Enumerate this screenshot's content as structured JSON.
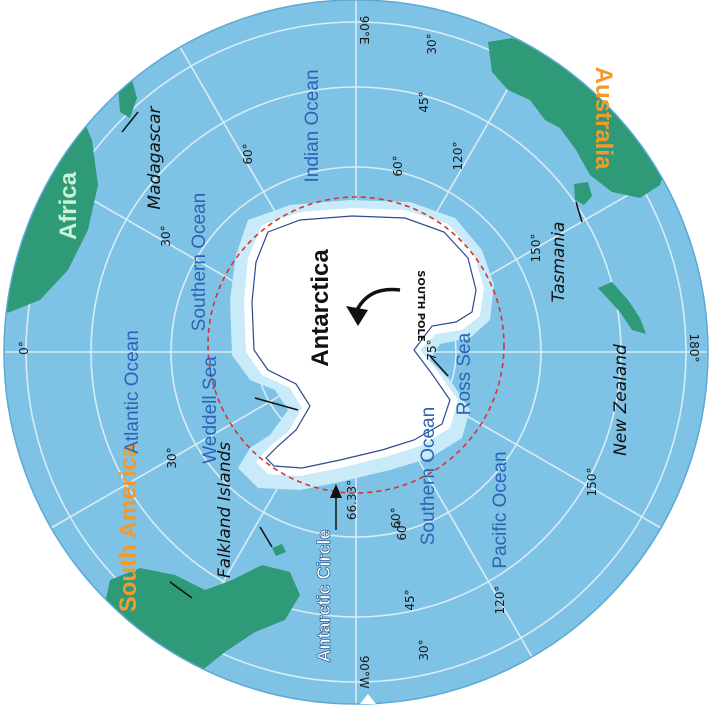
{
  "colors": {
    "ocean": "#7ec3e6",
    "land": "#2f9a78",
    "ice": "#ffffff",
    "shelf": "#c9eaf8",
    "circle_line": "#d9342b",
    "continent_label_orange": "#f39a2a",
    "continent_label_light": "#c9f2d6",
    "ocean_label": "#2d63b4"
  },
  "continents": {
    "africa": "Africa",
    "australia": "Australia",
    "south_america": "South America",
    "antarctica": "Antarctica"
  },
  "places": {
    "madagascar": "Madagascar",
    "tasmania": "Tasmania",
    "new_zealand": "New Zealand",
    "falkland": "Falkland Islands",
    "south_pole": "SOUTH POLE"
  },
  "oceans": {
    "indian": "Indian Ocean",
    "atlantic": "Atlantic Ocean",
    "pacific": "Pacific Ocean",
    "southern_upper": "Southern Ocean",
    "southern_lower": "Southern Ocean",
    "weddell": "Weddell Sea",
    "ross": "Ross Sea"
  },
  "antarctic_circle": {
    "label": "Antarctic Circle",
    "latitude": "66.33°"
  },
  "longitudes": {
    "top": "90°E",
    "bottom": "90°W",
    "left": "0°",
    "right": "180°",
    "upper_left": "30°",
    "upper_midleft": "60°",
    "upper_midright": "120°",
    "upper_right": "150°",
    "lower_left": "30°",
    "lower_midleft": "60°",
    "lower_midright": "120°",
    "lower_right": "150°"
  },
  "latitudes": {
    "top_30": "30°",
    "top_45": "45°",
    "top_60": "60°",
    "ross_75": "75°",
    "bottom_60": "60°",
    "bottom_45": "45°",
    "bottom_30": "30°"
  }
}
